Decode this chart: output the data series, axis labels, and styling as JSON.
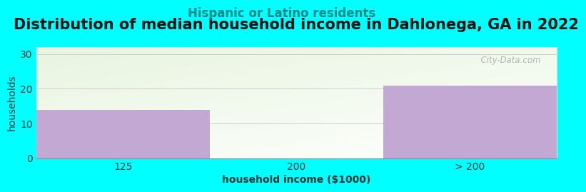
{
  "title": "Distribution of median household income in Dahlonega, GA in 2022",
  "subtitle": "Hispanic or Latino residents",
  "xlabel": "household income ($1000)",
  "ylabel": "households",
  "categories": [
    "125",
    "200",
    "> 200"
  ],
  "values": [
    14,
    0,
    21
  ],
  "bar_color": "#C4A8D4",
  "ylim": [
    0,
    32
  ],
  "yticks": [
    0,
    10,
    20,
    30
  ],
  "background_color": "#00FFFF",
  "plot_bg_color_topleft": "#E8F5E0",
  "plot_bg_color_topright": "#FFFFFF",
  "plot_bg_color_bottom": "#FFFFFF",
  "title_fontsize": 15,
  "title_color": "#111111",
  "subtitle_fontsize": 12,
  "subtitle_color": "#008888",
  "axis_label_fontsize": 10,
  "tick_label_fontsize": 10,
  "watermark_text": "  City-Data.com",
  "watermark_color": "#AAAAAA",
  "grid_color": "#CCCCCC"
}
